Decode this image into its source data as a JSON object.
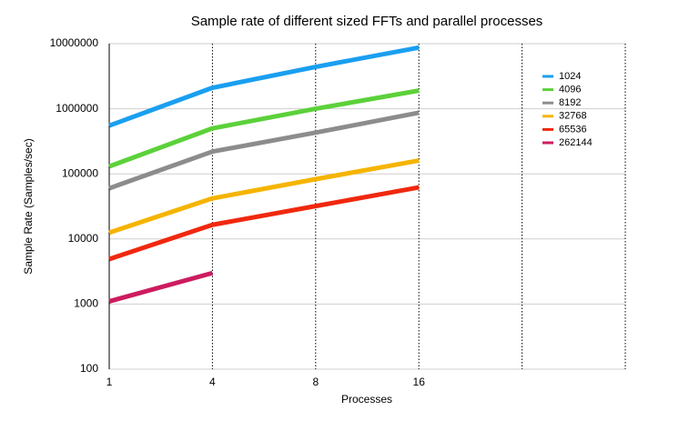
{
  "chart_data": {
    "type": "line",
    "title": "Sample rate of different sized FFTs and parallel processes",
    "x_label": "Processes",
    "y_label": "Sample Rate (Samples/sec)",
    "categories": [
      "1",
      "4",
      "8",
      "16",
      null,
      null
    ],
    "ylim": [
      100,
      10000000
    ],
    "yticks": [
      100,
      1000,
      10000,
      100000,
      1000000,
      10000000
    ],
    "log_y": true,
    "grid": true,
    "legend": "right",
    "series": [
      {
        "name": "1024",
        "color": "#1a9ff0",
        "values": [
          550000,
          2100000,
          4400000,
          8700000,
          null,
          null
        ]
      },
      {
        "name": "4096",
        "color": "#5cd13a",
        "values": [
          130000,
          500000,
          1000000,
          1900000,
          null,
          null
        ]
      },
      {
        "name": "8192",
        "color": "#8c8c8c",
        "values": [
          60000,
          220000,
          430000,
          870000,
          null,
          null
        ]
      },
      {
        "name": "32768",
        "color": "#f5b400",
        "values": [
          12500,
          42000,
          83000,
          160000,
          null,
          null
        ]
      },
      {
        "name": "65536",
        "color": "#f0280f",
        "values": [
          4900,
          16500,
          32000,
          62000,
          null,
          null
        ]
      },
      {
        "name": "262144",
        "color": "#cc1c5f",
        "values": [
          1100,
          3000,
          null,
          null,
          null,
          null
        ]
      }
    ]
  }
}
